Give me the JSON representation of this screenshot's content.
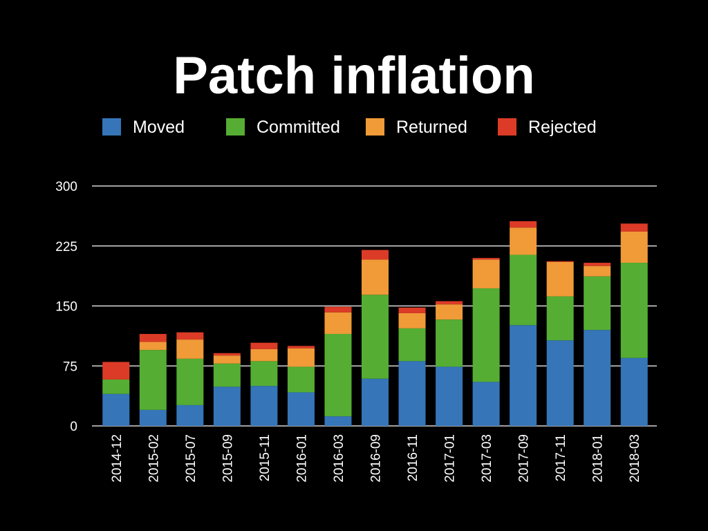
{
  "chart_data": {
    "type": "bar",
    "stacked": true,
    "title": "Patch inflation",
    "xlabel": "",
    "ylabel": "",
    "ylim": [
      0,
      300
    ],
    "yticks": [
      0,
      75,
      150,
      225,
      300
    ],
    "grid": true,
    "legend_position": "top",
    "categories": [
      "2014-12",
      "2015-02",
      "2015-07",
      "2015-09",
      "2015-11",
      "2016-01",
      "2016-03",
      "2016-09",
      "2016-11",
      "2017-01",
      "2017-03",
      "2017-09",
      "2017-11",
      "2018-01",
      "2018-03"
    ],
    "series": [
      {
        "name": "Moved",
        "color": "#3575b8",
        "values": [
          40,
          20,
          26,
          49,
          50,
          42,
          12,
          59,
          81,
          74,
          55,
          126,
          107,
          120,
          85
        ]
      },
      {
        "name": "Committed",
        "color": "#55ad33",
        "values": [
          18,
          75,
          58,
          29,
          31,
          32,
          103,
          105,
          41,
          59,
          117,
          88,
          55,
          67,
          119
        ]
      },
      {
        "name": "Returned",
        "color": "#f09a38",
        "values": [
          0,
          10,
          24,
          10,
          15,
          23,
          27,
          44,
          19,
          19,
          36,
          34,
          43,
          13,
          39
        ]
      },
      {
        "name": "Rejected",
        "color": "#dc3b27",
        "values": [
          22,
          10,
          9,
          3,
          8,
          3,
          7,
          12,
          7,
          4,
          2,
          8,
          1,
          4,
          10
        ]
      }
    ]
  }
}
